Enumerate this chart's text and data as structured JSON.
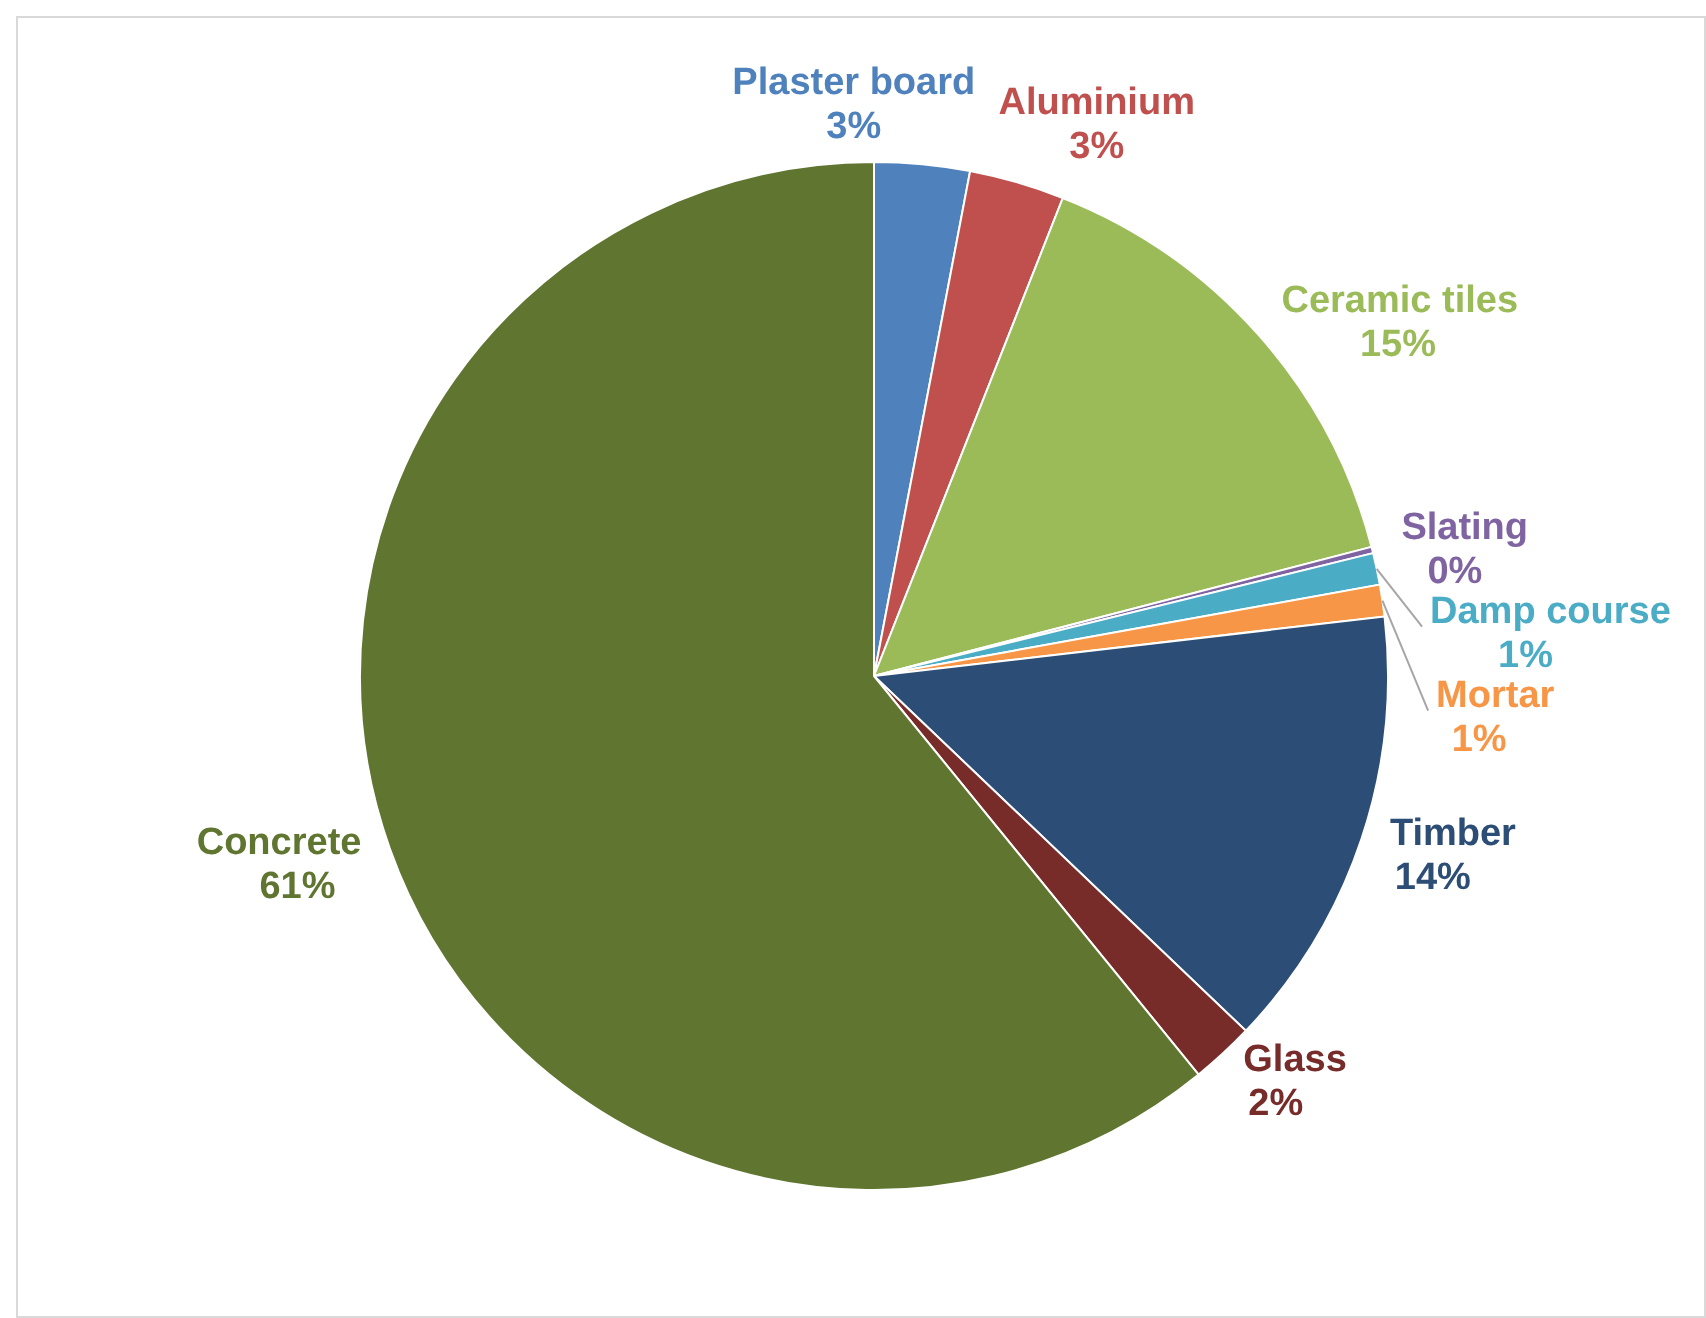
{
  "chart_data": {
    "type": "pie",
    "categories": [
      "Plaster board",
      "Aluminium",
      "Ceramic tiles",
      "Slating",
      "Damp course",
      "Mortar",
      "Timber",
      "Glass",
      "Concrete"
    ],
    "values": [
      3,
      3,
      15,
      0.2,
      1,
      1,
      14,
      2,
      61
    ],
    "value_labels": [
      "3%",
      "3%",
      "15%",
      "0%",
      "1%",
      "1%",
      "14%",
      "2%",
      "61%"
    ],
    "colors": [
      "#4f81bd",
      "#c0504d",
      "#9bbb59",
      "#8064a2",
      "#4bacc6",
      "#f79646",
      "#2c4d75",
      "#772c2a",
      "#5f7530"
    ]
  }
}
